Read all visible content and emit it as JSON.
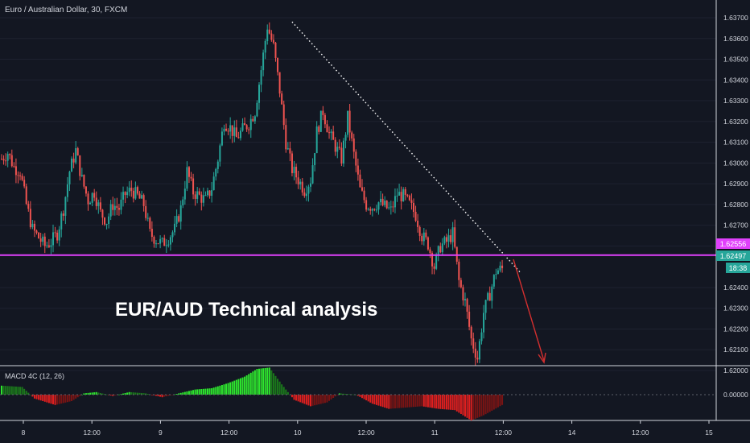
{
  "symbol_title": "Euro / Australian Dollar, 30, FXCM",
  "overlay_title": "EUR/AUD Technical analysis",
  "macd_title": "MACD 4C (12, 26)",
  "colors": {
    "background": "#131722",
    "bull": "#26a69a",
    "bear": "#ef5350",
    "level_line": "#e040fb",
    "arrow": "#d32f2f",
    "price_tag": "#26a69a",
    "level_tag": "#e040fb",
    "macd_pos": "#2ee62e",
    "macd_pos_weak": "#1b7a1b",
    "macd_neg": "#e01f1f",
    "macd_neg_weak": "#7a1414",
    "text": "#d1d4dc"
  },
  "price_axis": {
    "ticks": [
      "1.63700",
      "1.63600",
      "1.63500",
      "1.63400",
      "1.63300",
      "1.63200",
      "1.63100",
      "1.63000",
      "1.62900",
      "1.62800",
      "1.62700",
      "1.62600",
      "1.62400",
      "1.62300",
      "1.62200",
      "1.62100",
      "1.62000"
    ]
  },
  "macd_axis": {
    "ticks": [
      "0.00000"
    ]
  },
  "time_axis": {
    "labels": [
      "8",
      "12:00",
      "9",
      "12:00",
      "10",
      "12:00",
      "11",
      "12:00",
      "14",
      "12:00",
      "15"
    ]
  },
  "tags": {
    "level_price": "1.62556",
    "last_price": "1.62497",
    "countdown": "18:38"
  },
  "chart_data": {
    "type": "candlestick",
    "ylim": [
      1.6195,
      1.6375
    ],
    "level": 1.62556,
    "last_price": 1.62497,
    "trendline": {
      "from": [
        0,
        1.6368
      ],
      "to": [
        0,
        1.6247
      ]
    },
    "close_path": [
      [
        0,
        1.6302
      ],
      [
        3,
        1.6305
      ],
      [
        6,
        1.6298
      ],
      [
        9,
        1.6296
      ],
      [
        12,
        1.628
      ],
      [
        15,
        1.6268
      ],
      [
        18,
        1.6264
      ],
      [
        21,
        1.626
      ],
      [
        24,
        1.6262
      ],
      [
        27,
        1.6266
      ],
      [
        30,
        1.6278
      ],
      [
        33,
        1.6296
      ],
      [
        36,
        1.6306
      ],
      [
        39,
        1.6292
      ],
      [
        42,
        1.6282
      ],
      [
        45,
        1.6286
      ],
      [
        48,
        1.6276
      ],
      [
        51,
        1.6272
      ],
      [
        54,
        1.628
      ],
      [
        57,
        1.6278
      ],
      [
        60,
        1.6285
      ],
      [
        63,
        1.6287
      ],
      [
        66,
        1.6284
      ],
      [
        69,
        1.628
      ],
      [
        72,
        1.6266
      ],
      [
        75,
        1.6263
      ],
      [
        78,
        1.6261
      ],
      [
        81,
        1.6264
      ],
      [
        84,
        1.6268
      ],
      [
        87,
        1.6278
      ],
      [
        90,
        1.6296
      ],
      [
        93,
        1.6286
      ],
      [
        96,
        1.6284
      ],
      [
        99,
        1.6282
      ],
      [
        102,
        1.6288
      ],
      [
        105,
        1.6302
      ],
      [
        108,
        1.632
      ],
      [
        111,
        1.6317
      ],
      [
        114,
        1.6312
      ],
      [
        117,
        1.6316
      ],
      [
        120,
        1.6319
      ],
      [
        123,
        1.6325
      ],
      [
        126,
        1.6345
      ],
      [
        129,
        1.6366
      ],
      [
        132,
        1.6356
      ],
      [
        135,
        1.6335
      ],
      [
        138,
        1.631
      ],
      [
        141,
        1.6297
      ],
      [
        144,
        1.6292
      ],
      [
        147,
        1.6287
      ],
      [
        150,
        1.6292
      ],
      [
        153,
        1.6315
      ],
      [
        156,
        1.6325
      ],
      [
        159,
        1.6314
      ],
      [
        162,
        1.6308
      ],
      [
        165,
        1.6302
      ],
      [
        168,
        1.6322
      ],
      [
        171,
        1.6304
      ],
      [
        174,
        1.6287
      ],
      [
        177,
        1.628
      ],
      [
        180,
        1.6279
      ],
      [
        183,
        1.6281
      ],
      [
        186,
        1.6279
      ],
      [
        189,
        1.6277
      ],
      [
        192,
        1.6285
      ],
      [
        195,
        1.6284
      ],
      [
        198,
        1.628
      ],
      [
        201,
        1.6275
      ],
      [
        204,
        1.6265
      ],
      [
        207,
        1.6261
      ],
      [
        210,
        1.625
      ],
      [
        213,
        1.626
      ],
      [
        216,
        1.6262
      ],
      [
        219,
        1.6266
      ],
      [
        222,
        1.6243
      ],
      [
        225,
        1.6233
      ],
      [
        228,
        1.6215
      ],
      [
        231,
        1.6206
      ],
      [
        234,
        1.6228
      ],
      [
        237,
        1.6237
      ],
      [
        240,
        1.6248
      ],
      [
        243,
        1.6249
      ]
    ],
    "bar_count": 244,
    "macd_profile": [
      [
        0,
        0.35
      ],
      [
        10,
        0.3
      ],
      [
        16,
        -0.15
      ],
      [
        26,
        -0.4
      ],
      [
        34,
        -0.25
      ],
      [
        40,
        0.05
      ],
      [
        46,
        0.1
      ],
      [
        54,
        -0.05
      ],
      [
        62,
        0.1
      ],
      [
        70,
        0.05
      ],
      [
        78,
        -0.1
      ],
      [
        86,
        0.05
      ],
      [
        94,
        0.2
      ],
      [
        102,
        0.25
      ],
      [
        110,
        0.45
      ],
      [
        118,
        0.7
      ],
      [
        124,
        1.0
      ],
      [
        130,
        1.05
      ],
      [
        136,
        0.4
      ],
      [
        142,
        -0.2
      ],
      [
        150,
        -0.45
      ],
      [
        158,
        -0.3
      ],
      [
        164,
        0.05
      ],
      [
        172,
        0.0
      ],
      [
        180,
        -0.35
      ],
      [
        188,
        -0.55
      ],
      [
        196,
        -0.5
      ],
      [
        204,
        -0.45
      ],
      [
        212,
        -0.55
      ],
      [
        220,
        -0.6
      ],
      [
        228,
        -1.0
      ],
      [
        234,
        -0.8
      ],
      [
        243,
        -0.4
      ]
    ]
  }
}
